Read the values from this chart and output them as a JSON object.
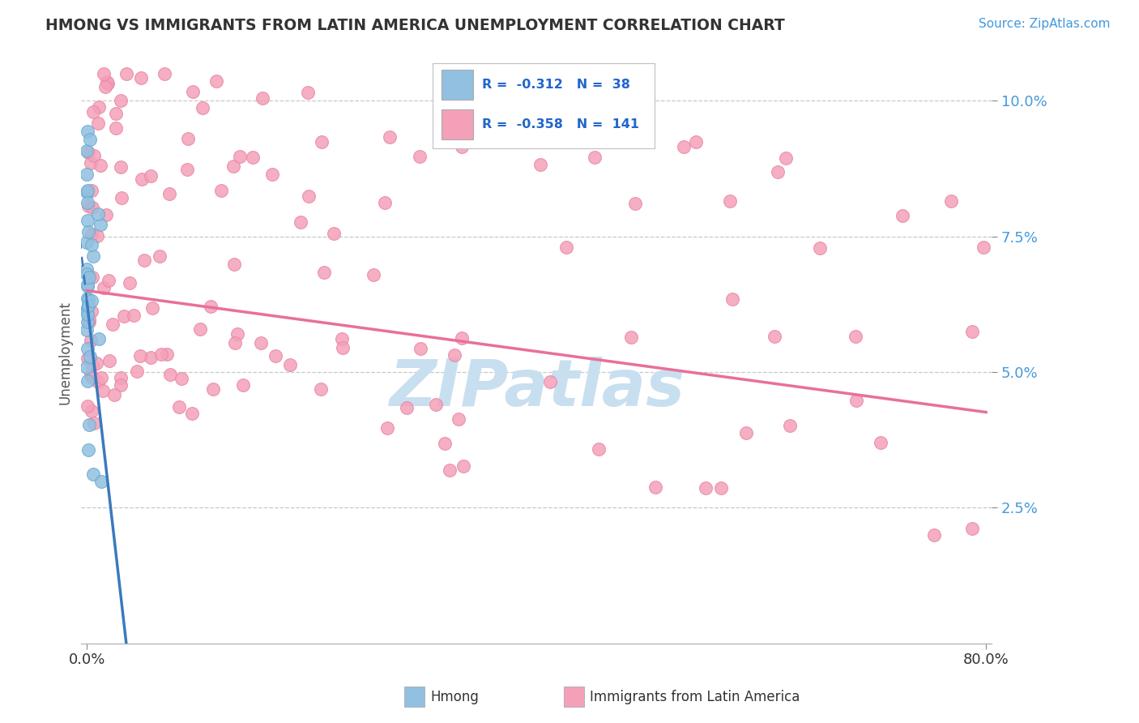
{
  "title": "HMONG VS IMMIGRANTS FROM LATIN AMERICA UNEMPLOYMENT CORRELATION CHART",
  "source": "Source: ZipAtlas.com",
  "ylabel": "Unemployment",
  "x_min": -0.005,
  "x_max": 0.805,
  "y_min": 0.0,
  "y_max": 0.107,
  "y_ticks": [
    0.025,
    0.05,
    0.075,
    0.1
  ],
  "y_tick_labels": [
    "2.5%",
    "5.0%",
    "7.5%",
    "10.0%"
  ],
  "x_ticks": [
    0.0,
    0.8
  ],
  "x_tick_labels": [
    "0.0%",
    "80.0%"
  ],
  "hmong_color": "#92c0e0",
  "latin_color": "#f4a0b8",
  "hmong_edge_color": "#6aaad0",
  "latin_edge_color": "#e888a8",
  "hmong_line_color": "#3a7abf",
  "latin_line_color": "#e8709a",
  "background_color": "#ffffff",
  "grid_color": "#c8c8c8",
  "watermark_color": "#c8dff0",
  "title_color": "#333333",
  "source_color": "#4499dd",
  "ytick_color": "#4499dd",
  "legend_R_color": "#2266cc",
  "legend_N_color": "#2266cc",
  "hmong_legend_color": "#92c0e0",
  "latin_legend_color": "#f4a0b8",
  "hmong_label": "Hmong",
  "latin_label": "Immigrants from Latin America",
  "hmong_R": "-0.312",
  "hmong_N": "38",
  "latin_R": "-0.358",
  "latin_N": "141",
  "hmong_line_intercept": 0.063,
  "hmong_line_slope": -1.8,
  "hmong_line_x_start": -0.012,
  "hmong_line_x_end": 0.035,
  "latin_line_intercept": 0.065,
  "latin_line_slope": -0.028,
  "latin_line_x_start": 0.0,
  "latin_line_x_end": 0.8
}
